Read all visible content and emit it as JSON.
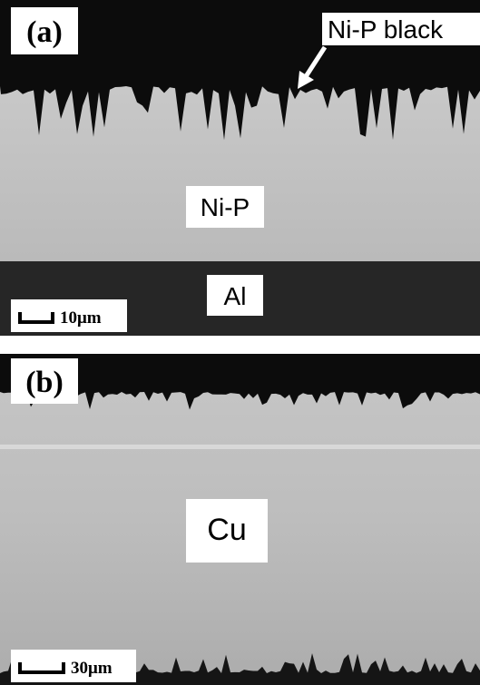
{
  "panels": [
    {
      "label": "(a)",
      "annotations": [
        "Ni-P black",
        "Ni-P",
        "Al"
      ],
      "scale_bar": "10μm"
    },
    {
      "label": "(b)",
      "annotations": [
        "Cu"
      ],
      "scale_bar": "30μm"
    }
  ]
}
